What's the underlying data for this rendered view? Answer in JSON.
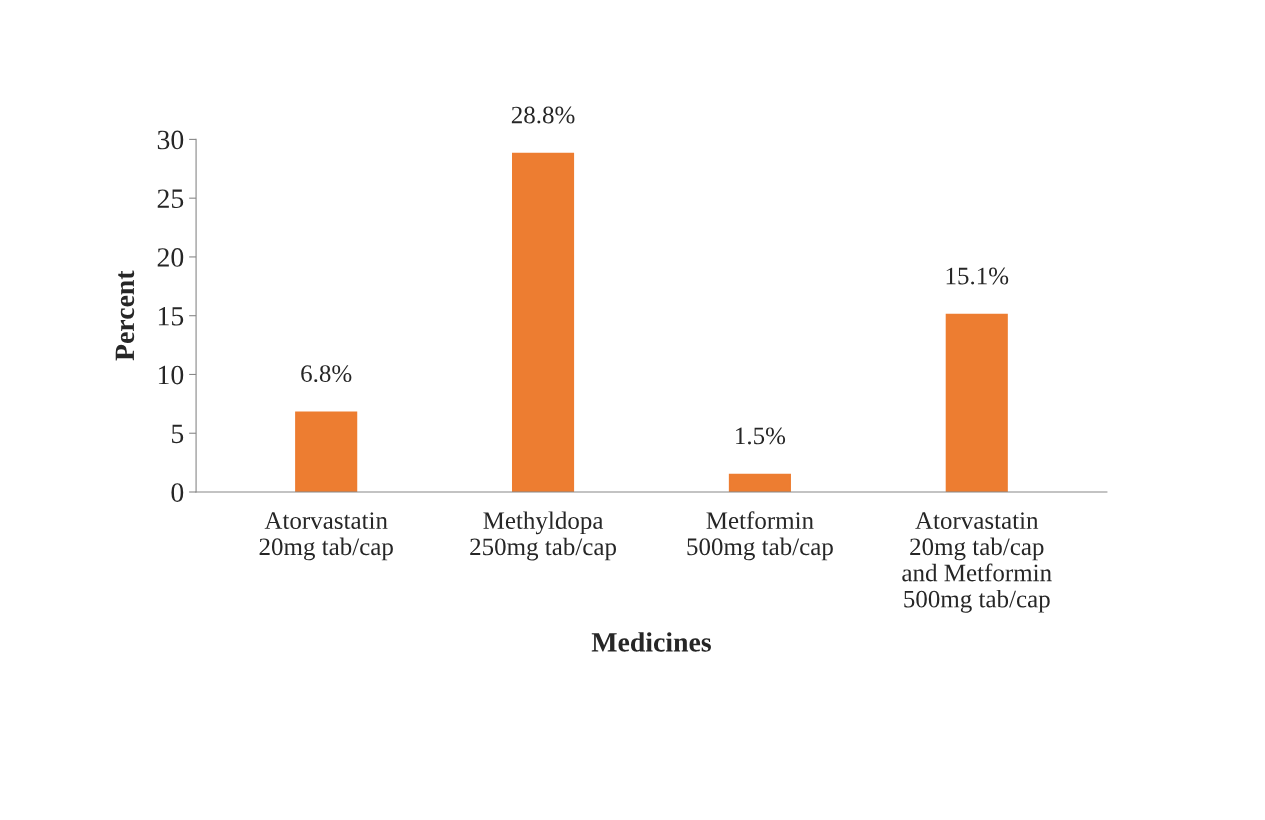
{
  "chart_data": {
    "type": "bar",
    "xlabel": "Medicines",
    "ylabel": "Percent",
    "categories": [
      "Atorvastatin\n20mg tab/cap",
      "Methyldopa\n250mg tab/cap",
      "Metformin\n500mg tab/cap",
      "Atorvastatin\n20mg tab/cap\nand Metformin\n500mg tab/cap"
    ],
    "values": [
      6.8,
      28.8,
      1.5,
      15.1
    ],
    "value_labels": [
      "6.8%",
      "28.8%",
      "1.5%",
      "15.1%"
    ],
    "color": "#ed7d31",
    "ylim": [
      0,
      30
    ],
    "yticks": [
      0,
      5,
      10,
      15,
      20,
      25,
      30
    ],
    "grid": false
  }
}
